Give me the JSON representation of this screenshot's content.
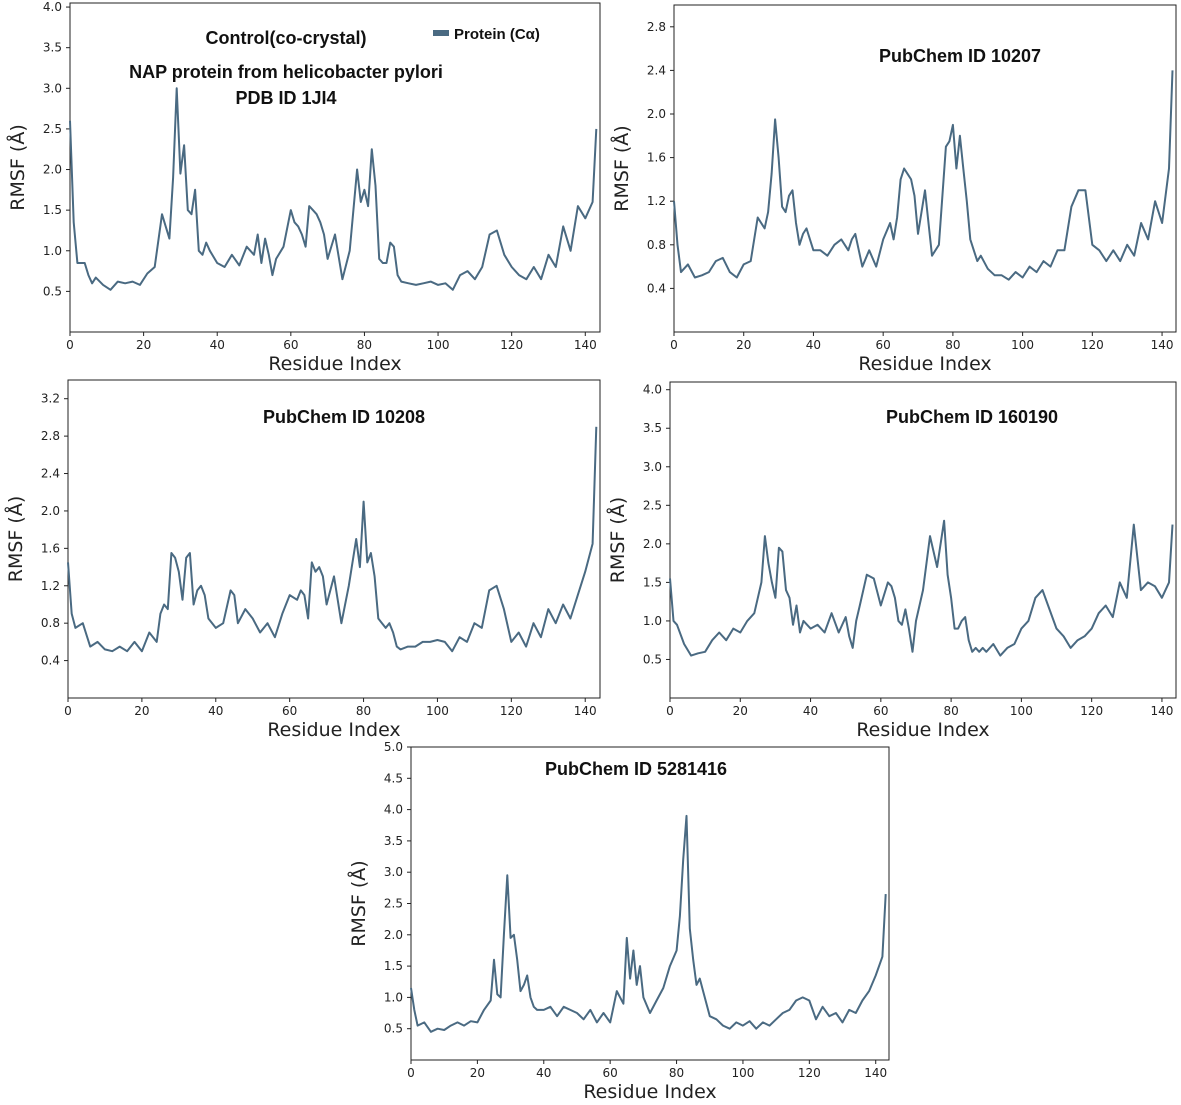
{
  "chart_data": [
    {
      "type": "line",
      "title_lines": [
        "Control(co-crystal)",
        "NAP protein from helicobacter pylori",
        "PDB ID  1JI4"
      ],
      "xlabel": "Residue Index",
      "ylabel": "RMSF (Å)",
      "xlim": [
        0,
        144
      ],
      "ylim": [
        0,
        4.05
      ],
      "xticks": [
        0,
        20,
        40,
        60,
        80,
        100,
        120,
        140
      ],
      "yticks": [
        0.5,
        1.0,
        1.5,
        2.0,
        2.5,
        3.0,
        3.5,
        4.0
      ],
      "ytick_labels": [
        "0.5",
        "1.0",
        "1.5",
        "2.0",
        "2.5",
        "3.0",
        "3.5",
        "4.0"
      ],
      "line_color": "#4a6a82",
      "legend": {
        "label": "Protein (Cα)",
        "placement": "top-right"
      },
      "series": [
        {
          "name": "Protein (Cα)",
          "x": [
            0,
            1,
            2,
            4,
            5,
            6,
            7,
            9,
            11,
            13,
            15,
            17,
            19,
            21,
            23,
            25,
            26,
            27,
            28,
            29,
            30,
            31,
            32,
            33,
            34,
            35,
            36,
            37,
            38,
            40,
            42,
            44,
            46,
            48,
            50,
            51,
            52,
            53,
            54,
            55,
            56,
            58,
            60,
            61,
            62,
            63,
            64,
            65,
            66,
            67,
            68,
            69,
            70,
            72,
            74,
            76,
            78,
            79,
            80,
            81,
            82,
            83,
            84,
            85,
            86,
            87,
            88,
            89,
            90,
            92,
            94,
            96,
            98,
            100,
            102,
            104,
            106,
            108,
            110,
            112,
            114,
            116,
            118,
            120,
            122,
            124,
            126,
            128,
            130,
            132,
            134,
            136,
            138,
            140,
            142,
            143
          ],
          "y": [
            2.6,
            1.35,
            0.85,
            0.85,
            0.7,
            0.6,
            0.67,
            0.58,
            0.52,
            0.62,
            0.6,
            0.62,
            0.58,
            0.72,
            0.8,
            1.45,
            1.3,
            1.15,
            1.9,
            3.0,
            1.95,
            2.3,
            1.5,
            1.45,
            1.75,
            1.0,
            0.95,
            1.1,
            1.0,
            0.85,
            0.8,
            0.95,
            0.82,
            1.05,
            0.95,
            1.2,
            0.85,
            1.15,
            0.95,
            0.7,
            0.9,
            1.05,
            1.5,
            1.35,
            1.3,
            1.2,
            1.05,
            1.55,
            1.5,
            1.45,
            1.35,
            1.2,
            0.9,
            1.2,
            0.65,
            1.0,
            2.0,
            1.6,
            1.75,
            1.55,
            2.25,
            1.8,
            0.9,
            0.85,
            0.85,
            1.1,
            1.05,
            0.7,
            0.62,
            0.6,
            0.58,
            0.6,
            0.62,
            0.58,
            0.6,
            0.52,
            0.7,
            0.75,
            0.65,
            0.8,
            1.2,
            1.25,
            0.95,
            0.8,
            0.7,
            0.65,
            0.8,
            0.65,
            0.95,
            0.8,
            1.3,
            1.0,
            1.55,
            1.4,
            1.6,
            2.5
          ]
        }
      ]
    },
    {
      "type": "line",
      "title_lines": [
        "PubChem ID 10207"
      ],
      "xlabel": "Residue Index",
      "ylabel": "RMSF (Å)",
      "xlim": [
        0,
        144
      ],
      "ylim": [
        0.0,
        3.0
      ],
      "xticks": [
        0,
        20,
        40,
        60,
        80,
        100,
        120,
        140
      ],
      "yticks": [
        0.4,
        0.8,
        1.2,
        1.6,
        2.0,
        2.4,
        2.8
      ],
      "ytick_labels": [
        "0.4",
        "0.8",
        "1.2",
        "1.6",
        "2.0",
        "2.4",
        "2.8"
      ],
      "line_color": "#4a6a82",
      "series": [
        {
          "name": "Protein (Cα)",
          "x": [
            0,
            1,
            2,
            4,
            6,
            8,
            10,
            12,
            14,
            16,
            18,
            20,
            22,
            24,
            26,
            27,
            28,
            29,
            30,
            31,
            32,
            33,
            34,
            35,
            36,
            37,
            38,
            40,
            42,
            44,
            46,
            48,
            50,
            51,
            52,
            53,
            54,
            56,
            58,
            60,
            62,
            63,
            64,
            65,
            66,
            67,
            68,
            69,
            70,
            72,
            74,
            76,
            78,
            79,
            80,
            81,
            82,
            83,
            84,
            85,
            86,
            87,
            88,
            90,
            92,
            94,
            96,
            98,
            100,
            102,
            104,
            106,
            108,
            110,
            112,
            114,
            116,
            118,
            120,
            122,
            124,
            126,
            128,
            130,
            132,
            134,
            136,
            138,
            140,
            142,
            143
          ],
          "y": [
            1.2,
            0.8,
            0.55,
            0.62,
            0.5,
            0.52,
            0.55,
            0.65,
            0.68,
            0.55,
            0.5,
            0.62,
            0.65,
            1.05,
            0.95,
            1.1,
            1.45,
            1.95,
            1.6,
            1.15,
            1.1,
            1.25,
            1.3,
            1.0,
            0.8,
            0.9,
            0.95,
            0.75,
            0.75,
            0.7,
            0.8,
            0.85,
            0.75,
            0.85,
            0.9,
            0.75,
            0.6,
            0.75,
            0.6,
            0.85,
            1.0,
            0.85,
            1.05,
            1.4,
            1.5,
            1.45,
            1.4,
            1.25,
            0.9,
            1.3,
            0.7,
            0.8,
            1.7,
            1.75,
            1.9,
            1.5,
            1.8,
            1.5,
            1.2,
            0.85,
            0.75,
            0.65,
            0.7,
            0.58,
            0.52,
            0.52,
            0.48,
            0.55,
            0.5,
            0.6,
            0.55,
            0.65,
            0.6,
            0.75,
            0.75,
            1.15,
            1.3,
            1.3,
            0.8,
            0.75,
            0.65,
            0.75,
            0.65,
            0.8,
            0.7,
            1.0,
            0.85,
            1.2,
            1.0,
            1.5,
            2.4
          ]
        }
      ]
    },
    {
      "type": "line",
      "title_lines": [
        "PubChem ID 10208"
      ],
      "xlabel": "Residue Index",
      "ylabel": "RMSF (Å)",
      "xlim": [
        0,
        144
      ],
      "ylim": [
        0.0,
        3.4
      ],
      "xticks": [
        0,
        20,
        40,
        60,
        80,
        100,
        120,
        140
      ],
      "yticks": [
        0.4,
        0.8,
        1.2,
        1.6,
        2.0,
        2.4,
        2.8,
        3.2
      ],
      "ytick_labels": [
        "0.4",
        "0.8",
        "1.2",
        "1.6",
        "2.0",
        "2.4",
        "2.8",
        "3.2"
      ],
      "line_color": "#4a6a82",
      "series": [
        {
          "name": "Protein (Cα)",
          "x": [
            0,
            1,
            2,
            4,
            6,
            8,
            10,
            12,
            14,
            16,
            18,
            20,
            22,
            24,
            25,
            26,
            27,
            28,
            29,
            30,
            31,
            32,
            33,
            34,
            35,
            36,
            37,
            38,
            40,
            42,
            44,
            45,
            46,
            48,
            50,
            52,
            54,
            56,
            58,
            60,
            62,
            63,
            64,
            65,
            66,
            67,
            68,
            69,
            70,
            72,
            74,
            76,
            78,
            79,
            80,
            81,
            82,
            83,
            84,
            85,
            86,
            87,
            88,
            89,
            90,
            92,
            94,
            96,
            98,
            100,
            102,
            104,
            106,
            108,
            110,
            112,
            114,
            116,
            118,
            120,
            122,
            124,
            126,
            128,
            130,
            132,
            134,
            136,
            138,
            140,
            142,
            143
          ],
          "y": [
            1.45,
            0.9,
            0.75,
            0.8,
            0.55,
            0.6,
            0.52,
            0.5,
            0.55,
            0.5,
            0.6,
            0.5,
            0.7,
            0.6,
            0.9,
            1.0,
            0.95,
            1.55,
            1.5,
            1.35,
            1.05,
            1.5,
            1.55,
            1.0,
            1.15,
            1.2,
            1.1,
            0.85,
            0.75,
            0.8,
            1.15,
            1.1,
            0.8,
            0.95,
            0.85,
            0.7,
            0.8,
            0.65,
            0.9,
            1.1,
            1.05,
            1.15,
            1.1,
            0.85,
            1.45,
            1.35,
            1.4,
            1.3,
            1.0,
            1.3,
            0.8,
            1.2,
            1.7,
            1.4,
            2.1,
            1.45,
            1.55,
            1.3,
            0.85,
            0.8,
            0.75,
            0.8,
            0.7,
            0.55,
            0.52,
            0.55,
            0.55,
            0.6,
            0.6,
            0.62,
            0.6,
            0.5,
            0.65,
            0.6,
            0.8,
            0.75,
            1.15,
            1.2,
            0.95,
            0.6,
            0.7,
            0.55,
            0.8,
            0.65,
            0.95,
            0.8,
            1.0,
            0.85,
            1.1,
            1.35,
            1.65,
            2.9
          ]
        }
      ]
    },
    {
      "type": "line",
      "title_lines": [
        "PubChem ID 160190"
      ],
      "xlabel": "Residue Index",
      "ylabel": "RMSF (Å)",
      "xlim": [
        0,
        144
      ],
      "ylim": [
        0.0,
        4.1
      ],
      "xticks": [
        0,
        20,
        40,
        60,
        80,
        100,
        120,
        140
      ],
      "yticks": [
        0.5,
        1.0,
        1.5,
        2.0,
        2.5,
        3.0,
        3.5,
        4.0
      ],
      "ytick_labels": [
        "0.5",
        "1.0",
        "1.5",
        "2.0",
        "2.5",
        "3.0",
        "3.5",
        "4.0"
      ],
      "line_color": "#4a6a82",
      "series": [
        {
          "name": "Protein (Cα)",
          "x": [
            0,
            1,
            2,
            4,
            6,
            8,
            10,
            12,
            14,
            16,
            18,
            20,
            22,
            24,
            26,
            27,
            28,
            29,
            30,
            31,
            32,
            33,
            34,
            35,
            36,
            37,
            38,
            40,
            42,
            44,
            46,
            48,
            50,
            51,
            52,
            53,
            54,
            56,
            58,
            60,
            62,
            63,
            64,
            65,
            66,
            67,
            68,
            69,
            70,
            72,
            74,
            76,
            78,
            79,
            80,
            81,
            82,
            83,
            84,
            85,
            86,
            87,
            88,
            89,
            90,
            92,
            94,
            96,
            98,
            100,
            102,
            104,
            106,
            108,
            110,
            112,
            114,
            116,
            118,
            120,
            122,
            124,
            126,
            128,
            130,
            132,
            134,
            136,
            138,
            140,
            142,
            143
          ],
          "y": [
            1.55,
            1.0,
            0.95,
            0.7,
            0.55,
            0.58,
            0.6,
            0.75,
            0.85,
            0.75,
            0.9,
            0.85,
            1.0,
            1.1,
            1.5,
            2.1,
            1.75,
            1.5,
            1.3,
            1.95,
            1.9,
            1.4,
            1.3,
            0.95,
            1.2,
            0.85,
            1.0,
            0.9,
            0.95,
            0.85,
            1.1,
            0.85,
            1.05,
            0.8,
            0.65,
            1.0,
            1.2,
            1.6,
            1.55,
            1.2,
            1.5,
            1.45,
            1.3,
            1.0,
            0.95,
            1.15,
            0.9,
            0.6,
            1.0,
            1.4,
            2.1,
            1.7,
            2.3,
            1.6,
            1.3,
            0.9,
            0.9,
            1.0,
            1.05,
            0.75,
            0.6,
            0.65,
            0.6,
            0.65,
            0.6,
            0.7,
            0.55,
            0.65,
            0.7,
            0.9,
            1.0,
            1.3,
            1.4,
            1.15,
            0.9,
            0.8,
            0.65,
            0.75,
            0.8,
            0.9,
            1.1,
            1.2,
            1.05,
            1.5,
            1.3,
            2.25,
            1.4,
            1.5,
            1.45,
            1.3,
            1.5,
            2.25
          ]
        }
      ]
    },
    {
      "type": "line",
      "title_lines": [
        "PubChem ID 5281416"
      ],
      "xlabel": "Residue Index",
      "ylabel": "RMSF (Å)",
      "xlim": [
        0,
        144
      ],
      "ylim": [
        0.0,
        5.0
      ],
      "xticks": [
        0,
        20,
        40,
        60,
        80,
        100,
        120,
        140
      ],
      "yticks": [
        0.5,
        1.0,
        1.5,
        2.0,
        2.5,
        3.0,
        3.5,
        4.0,
        4.5,
        5.0
      ],
      "ytick_labels": [
        "0.5",
        "1.0",
        "1.5",
        "2.0",
        "2.5",
        "3.0",
        "3.5",
        "4.0",
        "4.5",
        "5.0"
      ],
      "line_color": "#4a6a82",
      "series": [
        {
          "name": "Protein (Cα)",
          "x": [
            0,
            1,
            2,
            4,
            6,
            8,
            10,
            12,
            14,
            16,
            18,
            20,
            22,
            24,
            25,
            26,
            27,
            28,
            29,
            30,
            31,
            32,
            33,
            34,
            35,
            36,
            37,
            38,
            40,
            42,
            44,
            46,
            48,
            50,
            52,
            54,
            56,
            58,
            60,
            62,
            64,
            65,
            66,
            67,
            68,
            69,
            70,
            72,
            74,
            76,
            78,
            80,
            81,
            82,
            83,
            84,
            85,
            86,
            87,
            88,
            90,
            92,
            94,
            96,
            98,
            100,
            102,
            104,
            106,
            108,
            110,
            112,
            114,
            116,
            118,
            120,
            122,
            124,
            126,
            128,
            130,
            132,
            134,
            136,
            138,
            140,
            142,
            143
          ],
          "y": [
            1.15,
            0.8,
            0.55,
            0.6,
            0.45,
            0.5,
            0.48,
            0.55,
            0.6,
            0.55,
            0.62,
            0.6,
            0.8,
            0.95,
            1.6,
            1.05,
            1.0,
            2.0,
            2.95,
            1.95,
            2.0,
            1.6,
            1.1,
            1.2,
            1.35,
            1.0,
            0.85,
            0.8,
            0.8,
            0.85,
            0.7,
            0.85,
            0.8,
            0.75,
            0.65,
            0.8,
            0.6,
            0.75,
            0.6,
            1.1,
            0.9,
            1.95,
            1.3,
            1.75,
            1.2,
            1.5,
            1.0,
            0.75,
            0.95,
            1.15,
            1.5,
            1.75,
            2.3,
            3.2,
            3.9,
            2.1,
            1.6,
            1.2,
            1.3,
            1.1,
            0.7,
            0.65,
            0.55,
            0.5,
            0.6,
            0.55,
            0.62,
            0.5,
            0.6,
            0.55,
            0.65,
            0.75,
            0.8,
            0.95,
            1.0,
            0.95,
            0.65,
            0.85,
            0.7,
            0.75,
            0.6,
            0.8,
            0.75,
            0.95,
            1.1,
            1.35,
            1.65,
            2.65
          ]
        }
      ]
    }
  ]
}
